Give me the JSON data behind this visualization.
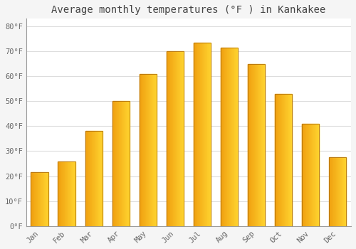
{
  "title": "Average monthly temperatures (°F ) in Kankakee",
  "months": [
    "Jan",
    "Feb",
    "Mar",
    "Apr",
    "May",
    "Jun",
    "Jul",
    "Aug",
    "Sep",
    "Oct",
    "Nov",
    "Dec"
  ],
  "values": [
    21.5,
    26.0,
    38.0,
    50.0,
    61.0,
    70.0,
    73.5,
    71.5,
    65.0,
    53.0,
    41.0,
    27.5
  ],
  "bar_color_left": "#F0A020",
  "bar_color_right": "#FFD040",
  "bar_edge_color": "#B07010",
  "background_color": "#f5f5f5",
  "plot_bg_color": "#ffffff",
  "ytick_labels": [
    "0°F",
    "10°F",
    "20°F",
    "30°F",
    "40°F",
    "50°F",
    "60°F",
    "70°F",
    "80°F"
  ],
  "ytick_values": [
    0,
    10,
    20,
    30,
    40,
    50,
    60,
    70,
    80
  ],
  "ylim": [
    0,
    83
  ],
  "title_fontsize": 10,
  "tick_fontsize": 7.5,
  "grid_color": "#dddddd",
  "tick_color": "#666666",
  "font_family": "monospace",
  "bar_width": 0.65
}
